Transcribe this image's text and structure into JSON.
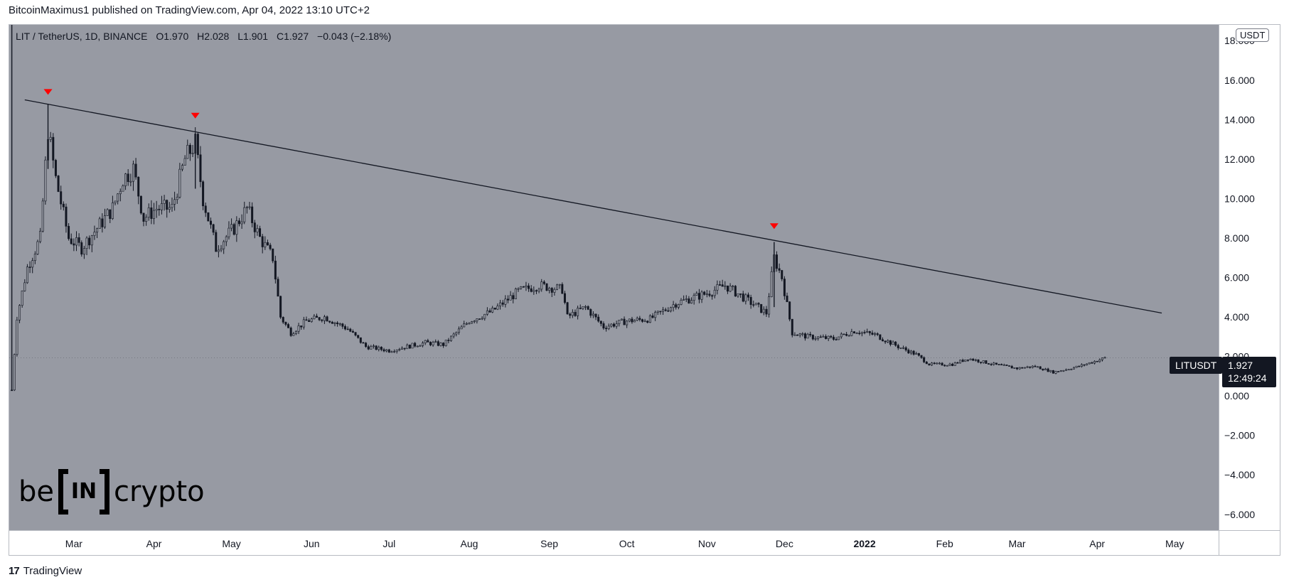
{
  "header": {
    "caption": "BitcoinMaximus1 published on TradingView.com, Apr 04, 2022 13:10 UTC+2"
  },
  "legend": {
    "symbol": "LIT / TetherUS, 1D, BINANCE",
    "open_label": "O",
    "open": "1.970",
    "high_label": "H",
    "high": "2.028",
    "low_label": "L",
    "low": "1.901",
    "close_label": "C",
    "close": "1.927",
    "change": "−0.043 (−2.18%)"
  },
  "currency_badge": "USDT",
  "ticker_tag": "LITUSDT",
  "last_price": {
    "value": "1.927",
    "countdown": "12:49:24"
  },
  "watermark": {
    "left": "be",
    "box": "IN",
    "right": "crypto"
  },
  "footer": {
    "logo": "17",
    "brand": "TradingView"
  },
  "colors": {
    "background": "#979aa3",
    "candles": "#131722",
    "resistance_line": "#131722",
    "markers": "#ff0000"
  },
  "chart_data": {
    "type": "candlestick",
    "title": "LIT / TetherUS, 1D, BINANCE",
    "ylabel": "USDT",
    "ylim": [
      -6.8,
      18.8
    ],
    "y_ticks": [
      "18.000",
      "16.000",
      "14.000",
      "12.000",
      "10.000",
      "8.000",
      "6.000",
      "4.000",
      "2.000",
      "0.000",
      "−2.000",
      "−4.000",
      "−6.000"
    ],
    "y_tick_values": [
      18,
      16,
      14,
      12,
      10,
      8,
      6,
      4,
      2,
      0,
      -2,
      -4,
      -6
    ],
    "x_range": [
      "2021-02-04",
      "2022-05-18"
    ],
    "x_ticks": [
      {
        "label": "Mar",
        "date": "2021-03-01",
        "bold": false
      },
      {
        "label": "Apr",
        "date": "2021-04-01",
        "bold": false
      },
      {
        "label": "May",
        "date": "2021-05-01",
        "bold": false
      },
      {
        "label": "Jun",
        "date": "2021-06-01",
        "bold": false
      },
      {
        "label": "Jul",
        "date": "2021-07-01",
        "bold": false
      },
      {
        "label": "Aug",
        "date": "2021-08-01",
        "bold": false
      },
      {
        "label": "Sep",
        "date": "2021-09-01",
        "bold": false
      },
      {
        "label": "Oct",
        "date": "2021-10-01",
        "bold": false
      },
      {
        "label": "Nov",
        "date": "2021-11-01",
        "bold": false
      },
      {
        "label": "Dec",
        "date": "2021-12-01",
        "bold": false
      },
      {
        "label": "2022",
        "date": "2022-01-01",
        "bold": true
      },
      {
        "label": "Feb",
        "date": "2022-02-01",
        "bold": false
      },
      {
        "label": "Mar",
        "date": "2022-03-01",
        "bold": false
      },
      {
        "label": "Apr",
        "date": "2022-04-01",
        "bold": false
      },
      {
        "label": "May",
        "date": "2022-05-01",
        "bold": false
      }
    ],
    "price_path": [
      {
        "date": "2021-02-05",
        "value": 0.3
      },
      {
        "date": "2021-02-07",
        "value": 4.0
      },
      {
        "date": "2021-02-11",
        "value": 6.5
      },
      {
        "date": "2021-02-16",
        "value": 8.0
      },
      {
        "date": "2021-02-19",
        "value": 13.5
      },
      {
        "date": "2021-02-22",
        "value": 11.0
      },
      {
        "date": "2021-02-27",
        "value": 8.0
      },
      {
        "date": "2021-03-04",
        "value": 7.5
      },
      {
        "date": "2021-03-10",
        "value": 8.5
      },
      {
        "date": "2021-03-16",
        "value": 9.5
      },
      {
        "date": "2021-03-20",
        "value": 11.0
      },
      {
        "date": "2021-03-24",
        "value": 11.5
      },
      {
        "date": "2021-03-28",
        "value": 9.0
      },
      {
        "date": "2021-04-02",
        "value": 9.5
      },
      {
        "date": "2021-04-08",
        "value": 9.5
      },
      {
        "date": "2021-04-13",
        "value": 12.0
      },
      {
        "date": "2021-04-17",
        "value": 12.8
      },
      {
        "date": "2021-04-20",
        "value": 10.0
      },
      {
        "date": "2021-04-25",
        "value": 7.5
      },
      {
        "date": "2021-05-02",
        "value": 8.5
      },
      {
        "date": "2021-05-07",
        "value": 9.5
      },
      {
        "date": "2021-05-12",
        "value": 8.0
      },
      {
        "date": "2021-05-17",
        "value": 7.0
      },
      {
        "date": "2021-05-20",
        "value": 4.0
      },
      {
        "date": "2021-05-24",
        "value": 3.2
      },
      {
        "date": "2021-05-30",
        "value": 3.8
      },
      {
        "date": "2021-06-06",
        "value": 4.0
      },
      {
        "date": "2021-06-15",
        "value": 3.4
      },
      {
        "date": "2021-06-22",
        "value": 2.5
      },
      {
        "date": "2021-07-01",
        "value": 2.3
      },
      {
        "date": "2021-07-15",
        "value": 2.7
      },
      {
        "date": "2021-07-22",
        "value": 2.6
      },
      {
        "date": "2021-08-01",
        "value": 3.8
      },
      {
        "date": "2021-08-10",
        "value": 4.3
      },
      {
        "date": "2021-08-20",
        "value": 5.3
      },
      {
        "date": "2021-08-28",
        "value": 5.6
      },
      {
        "date": "2021-09-06",
        "value": 5.4
      },
      {
        "date": "2021-09-08",
        "value": 4.0
      },
      {
        "date": "2021-09-15",
        "value": 4.5
      },
      {
        "date": "2021-09-22",
        "value": 3.5
      },
      {
        "date": "2021-10-01",
        "value": 3.8
      },
      {
        "date": "2021-10-10",
        "value": 3.9
      },
      {
        "date": "2021-10-20",
        "value": 4.7
      },
      {
        "date": "2021-11-01",
        "value": 5.2
      },
      {
        "date": "2021-11-08",
        "value": 5.6
      },
      {
        "date": "2021-11-15",
        "value": 5.0
      },
      {
        "date": "2021-11-24",
        "value": 4.2
      },
      {
        "date": "2021-11-27",
        "value": 7.0
      },
      {
        "date": "2021-11-30",
        "value": 6.0
      },
      {
        "date": "2021-12-04",
        "value": 3.2
      },
      {
        "date": "2021-12-10",
        "value": 3.0
      },
      {
        "date": "2021-12-20",
        "value": 2.9
      },
      {
        "date": "2021-12-28",
        "value": 3.3
      },
      {
        "date": "2022-01-05",
        "value": 3.1
      },
      {
        "date": "2022-01-14",
        "value": 2.5
      },
      {
        "date": "2022-01-21",
        "value": 2.1
      },
      {
        "date": "2022-01-26",
        "value": 1.6
      },
      {
        "date": "2022-02-04",
        "value": 1.6
      },
      {
        "date": "2022-02-10",
        "value": 1.9
      },
      {
        "date": "2022-02-20",
        "value": 1.6
      },
      {
        "date": "2022-03-01",
        "value": 1.4
      },
      {
        "date": "2022-03-08",
        "value": 1.5
      },
      {
        "date": "2022-03-15",
        "value": 1.2
      },
      {
        "date": "2022-03-25",
        "value": 1.5
      },
      {
        "date": "2022-04-04",
        "value": 1.927
      }
    ],
    "spikes": [
      {
        "date": "2021-02-05",
        "high": 18.8,
        "low": 0.3
      },
      {
        "date": "2021-02-19",
        "high": 14.8,
        "low": 11.5
      },
      {
        "date": "2021-04-17",
        "high": 13.3,
        "low": 10.5
      },
      {
        "date": "2021-11-27",
        "high": 7.8,
        "low": 4.5
      }
    ],
    "resistance_line": {
      "start": {
        "date": "2021-02-10",
        "value": 15.0
      },
      "end": {
        "date": "2022-04-26",
        "value": 4.2
      }
    },
    "markers": [
      {
        "date": "2021-02-19",
        "value": 15.4
      },
      {
        "date": "2021-04-17",
        "value": 14.2
      },
      {
        "date": "2021-11-27",
        "value": 8.6
      }
    ],
    "last_price": 1.927,
    "grid": false
  }
}
